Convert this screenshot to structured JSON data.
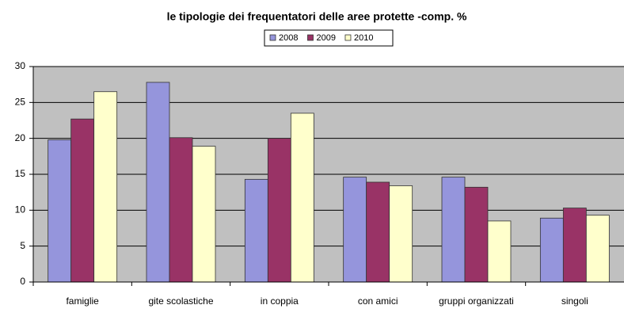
{
  "chart_data": {
    "type": "bar",
    "title": "le tipologie dei frequentatori delle aree protette -comp. %",
    "categories": [
      "famiglie",
      "gite scolastiche",
      "in coppia",
      "con amici",
      "gruppi organizzati",
      "singoli"
    ],
    "series": [
      {
        "name": "2008",
        "color": "#9595dc",
        "values": [
          19.8,
          27.8,
          14.3,
          14.6,
          14.6,
          8.9
        ]
      },
      {
        "name": "2009",
        "color": "#993366",
        "values": [
          22.7,
          20.1,
          20.0,
          13.9,
          13.2,
          10.3
        ]
      },
      {
        "name": "2010",
        "color": "#ffffcc",
        "values": [
          26.5,
          18.9,
          23.5,
          13.4,
          8.5,
          9.3
        ]
      }
    ],
    "ylim": [
      0,
      30
    ],
    "yticks": [
      0,
      5,
      10,
      15,
      20,
      25,
      30
    ],
    "grid": true
  }
}
